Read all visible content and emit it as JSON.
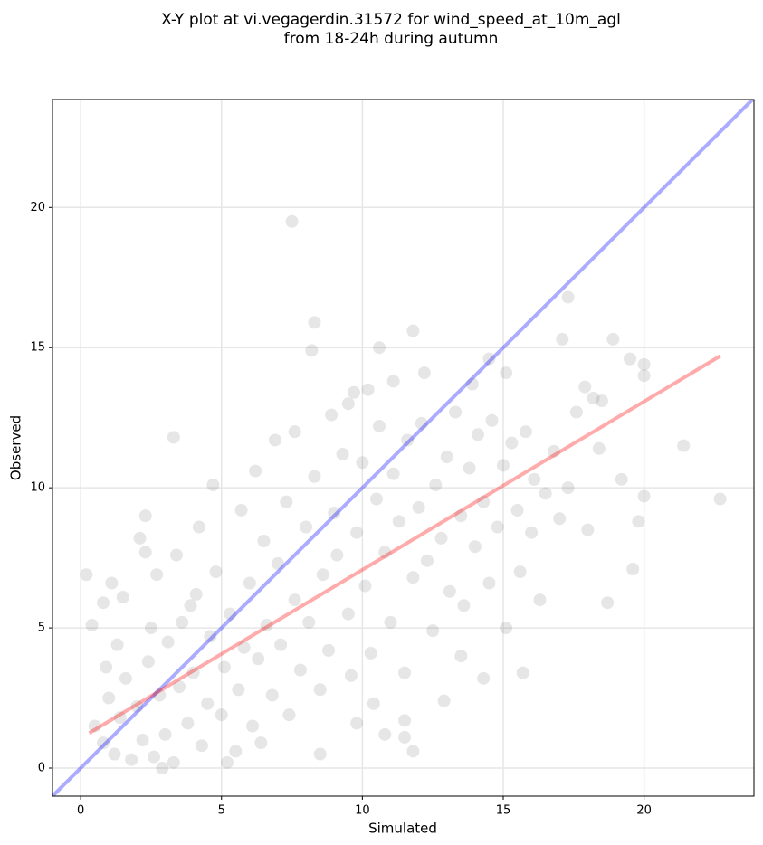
{
  "chart_data": {
    "type": "scatter",
    "title": [
      "X-Y plot at vi.vegagerdin.31572 for wind_speed_at_10m_agl",
      "from 18-24h during autumn"
    ],
    "xlabel": "Simulated",
    "ylabel": "Observed",
    "xlim": [
      -1.0,
      23.9
    ],
    "ylim": [
      -1.0,
      23.85
    ],
    "xticks": [
      0,
      5,
      10,
      15,
      20
    ],
    "yticks": [
      0,
      5,
      10,
      15,
      20
    ],
    "grid": true,
    "series": [
      {
        "color": "#404040",
        "x": [
          7.5,
          8.3,
          8.2,
          11.8,
          17.3,
          10.6,
          3.3,
          21.4,
          22.7,
          20.0,
          19.6,
          18.7,
          15.7,
          11.8,
          0.2,
          8.5,
          19.5,
          20.0,
          18.9,
          17.1,
          12.2,
          14.5,
          15.1,
          10.2,
          9.5,
          11.1,
          17.9,
          18.5,
          18.2,
          13.5,
          14.3,
          12.9,
          11.5,
          11.5,
          10.8,
          10.4,
          9.8,
          0.4,
          0.8,
          1.5,
          2.3,
          2.1,
          2.3,
          0.5,
          0.8,
          1.0,
          1.2,
          1.4,
          1.6,
          1.8,
          2.0,
          2.2,
          2.4,
          2.6,
          2.8,
          3.0,
          3.1,
          3.3,
          3.5,
          3.6,
          3.8,
          4.0,
          4.1,
          4.3,
          4.5,
          4.6,
          4.8,
          5.0,
          5.1,
          5.3,
          5.5,
          5.6,
          5.8,
          6.0,
          6.1,
          6.3,
          6.5,
          6.6,
          6.8,
          7.0,
          7.1,
          7.3,
          7.4,
          7.6,
          7.8,
          8.0,
          8.1,
          8.3,
          8.5,
          8.6,
          8.8,
          9.0,
          9.1,
          9.3,
          9.5,
          9.6,
          9.8,
          10.0,
          10.1,
          10.3,
          10.5,
          10.6,
          10.8,
          11.0,
          11.1,
          11.3,
          11.5,
          11.6,
          11.8,
          12.0,
          12.1,
          12.3,
          12.5,
          12.6,
          12.8,
          13.0,
          13.1,
          13.3,
          13.5,
          13.6,
          13.8,
          14.0,
          14.1,
          14.3,
          14.5,
          14.6,
          14.8,
          15.0,
          15.1,
          15.3,
          15.5,
          15.6,
          15.8,
          16.0,
          16.1,
          16.3,
          16.5,
          16.8,
          17.0,
          17.3,
          17.6,
          18.0,
          18.4,
          19.2,
          19.8,
          20.0,
          13.9,
          2.7,
          1.3,
          0.9,
          3.4,
          4.2,
          5.7,
          6.9,
          7.6,
          5.2,
          6.4,
          2.9,
          4.7,
          8.9,
          9.7,
          6.2,
          3.9,
          2.5,
          1.1
        ],
        "values": [
          19.5,
          15.9,
          14.9,
          15.6,
          16.8,
          15.0,
          11.8,
          11.5,
          9.6,
          9.7,
          7.1,
          5.9,
          3.4,
          0.6,
          6.9,
          0.5,
          14.6,
          14.4,
          15.3,
          15.3,
          14.1,
          14.6,
          14.1,
          13.5,
          13.0,
          13.8,
          13.6,
          13.1,
          13.2,
          4.0,
          3.2,
          2.4,
          1.1,
          1.7,
          1.2,
          2.3,
          1.6,
          5.1,
          5.9,
          6.1,
          9.0,
          8.2,
          7.7,
          1.5,
          0.9,
          2.5,
          0.5,
          1.8,
          3.2,
          0.3,
          2.2,
          1.0,
          3.8,
          0.4,
          2.6,
          1.2,
          4.5,
          0.2,
          2.9,
          5.2,
          1.6,
          3.4,
          6.2,
          0.8,
          2.3,
          4.7,
          7.0,
          1.9,
          3.6,
          5.5,
          0.6,
          2.8,
          4.3,
          6.6,
          1.5,
          3.9,
          8.1,
          5.1,
          2.6,
          7.3,
          4.4,
          9.5,
          1.9,
          6.0,
          3.5,
          8.6,
          5.2,
          10.4,
          2.8,
          6.9,
          4.2,
          9.1,
          7.6,
          11.2,
          5.5,
          3.3,
          8.4,
          10.9,
          6.5,
          4.1,
          9.6,
          12.2,
          7.7,
          5.2,
          10.5,
          8.8,
          3.4,
          11.7,
          6.8,
          9.3,
          12.3,
          7.4,
          4.9,
          10.1,
          8.2,
          11.1,
          6.3,
          12.7,
          9.0,
          5.8,
          10.7,
          7.9,
          11.9,
          9.5,
          6.6,
          12.4,
          8.6,
          10.8,
          5.0,
          11.6,
          9.2,
          7.0,
          12.0,
          8.4,
          10.3,
          6.0,
          9.8,
          11.3,
          8.9,
          10.0,
          12.7,
          8.5,
          11.4,
          10.3,
          8.8,
          14.0,
          13.7,
          6.9,
          4.4,
          3.6,
          7.6,
          8.6,
          9.2,
          11.7,
          12.0,
          0.2,
          0.9,
          0.0,
          10.1,
          12.6,
          13.4,
          10.6,
          5.8,
          5.0,
          6.6
        ]
      }
    ],
    "lines": [
      {
        "color": "#0000ff",
        "x": [
          -1.0,
          23.9
        ],
        "values": [
          -1.0,
          23.9
        ]
      },
      {
        "color": "#ff0000",
        "x": [
          0.3,
          22.7
        ],
        "values": [
          1.25,
          14.7
        ]
      }
    ]
  }
}
